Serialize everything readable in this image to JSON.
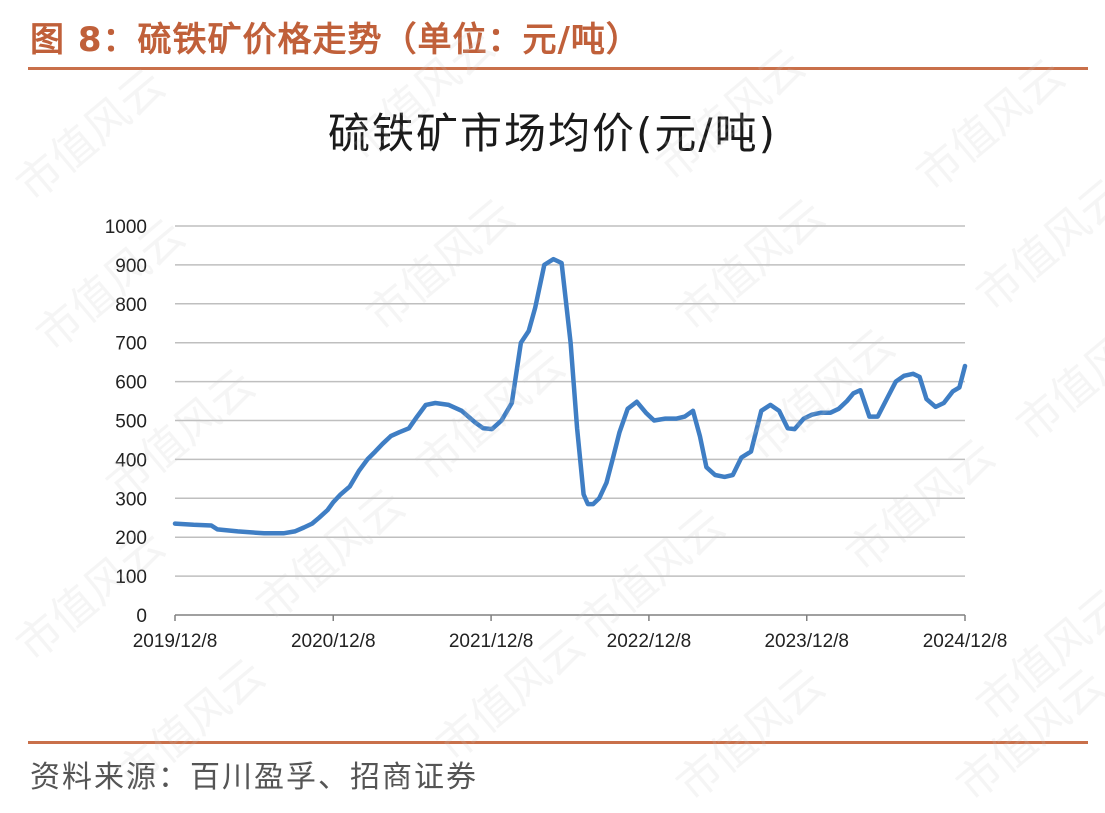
{
  "figure_title": "图 8：硫铁矿价格走势（单位：元/吨）",
  "source_text": "资料来源：百川盈孚、招商证券",
  "watermark": "市值风云",
  "colors": {
    "accent": "#c9704a",
    "line": "#3f7ec4",
    "grid": "#bfbfbf"
  },
  "chart_data": {
    "type": "line",
    "title": "硫铁矿市场均价(元/吨)",
    "xlabel": "",
    "ylabel": "",
    "ylim": [
      0,
      1000
    ],
    "yticks": [
      0,
      100,
      200,
      300,
      400,
      500,
      600,
      700,
      800,
      900,
      1000
    ],
    "xlim": [
      "2019-12-08",
      "2024-12-08"
    ],
    "xtick_labels": [
      "2019/12/8",
      "2020/12/8",
      "2021/12/8",
      "2022/12/8",
      "2023/12/8",
      "2024/12/8"
    ],
    "grid": true,
    "legend": "none",
    "series": [
      {
        "x": [
          "2019-12-08",
          "2020-01-20",
          "2020-03-01",
          "2020-03-15",
          "2020-05-01",
          "2020-07-01",
          "2020-08-15",
          "2020-09-10",
          "2020-10-01",
          "2020-10-20",
          "2020-11-05",
          "2020-11-25",
          "2020-12-08",
          "2020-12-25",
          "2021-01-15",
          "2021-02-05",
          "2021-02-25",
          "2021-03-15",
          "2021-04-01",
          "2021-04-20",
          "2021-05-10",
          "2021-06-01",
          "2021-06-20",
          "2021-07-10",
          "2021-08-01",
          "2021-09-01",
          "2021-10-01",
          "2021-11-01",
          "2021-11-20",
          "2021-12-10",
          "2022-01-01",
          "2022-01-25",
          "2022-02-15",
          "2022-03-05",
          "2022-03-20",
          "2022-04-10",
          "2022-05-01",
          "2022-05-20",
          "2022-06-10",
          "2022-06-25",
          "2022-07-10",
          "2022-07-20",
          "2022-08-01",
          "2022-08-15",
          "2022-09-01",
          "2022-09-15",
          "2022-10-01",
          "2022-10-20",
          "2022-11-10",
          "2022-12-01",
          "2022-12-20",
          "2023-01-15",
          "2023-02-10",
          "2023-03-01",
          "2023-03-20",
          "2023-04-05",
          "2023-04-20",
          "2023-05-10",
          "2023-06-01",
          "2023-06-20",
          "2023-07-10",
          "2023-08-01",
          "2023-08-25",
          "2023-09-15",
          "2023-10-05",
          "2023-10-25",
          "2023-11-10",
          "2023-12-01",
          "2023-12-20",
          "2024-01-10",
          "2024-02-01",
          "2024-02-20",
          "2024-03-10",
          "2024-03-25",
          "2024-04-10",
          "2024-05-01",
          "2024-05-20",
          "2024-06-10",
          "2024-07-01",
          "2024-07-20",
          "2024-08-10",
          "2024-08-25",
          "2024-09-10",
          "2024-10-01",
          "2024-10-20",
          "2024-11-10",
          "2024-11-25",
          "2024-12-08"
        ],
        "values": [
          235,
          232,
          230,
          220,
          215,
          210,
          210,
          215,
          225,
          235,
          250,
          270,
          290,
          310,
          330,
          370,
          400,
          420,
          440,
          460,
          470,
          480,
          510,
          540,
          545,
          540,
          525,
          495,
          480,
          478,
          500,
          545,
          700,
          730,
          790,
          900,
          915,
          905,
          700,
          480,
          310,
          285,
          285,
          300,
          340,
          400,
          470,
          530,
          548,
          520,
          500,
          505,
          505,
          510,
          525,
          460,
          380,
          360,
          355,
          360,
          405,
          420,
          525,
          540,
          525,
          480,
          478,
          505,
          515,
          520,
          520,
          530,
          550,
          570,
          578,
          510,
          510,
          555,
          600,
          615,
          620,
          612,
          555,
          535,
          545,
          575,
          585,
          640
        ]
      }
    ]
  }
}
